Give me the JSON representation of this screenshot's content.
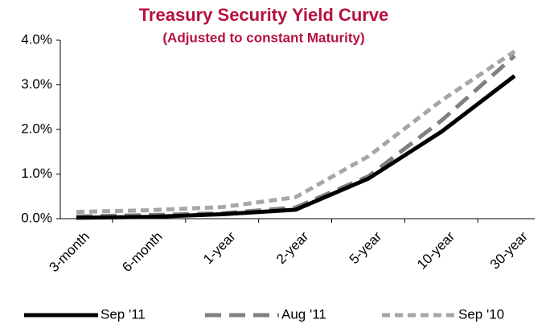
{
  "chart_data": {
    "type": "line",
    "title": "Treasury Security Yield Curve",
    "subtitle": "(Adjusted to constant Maturity)",
    "categories": [
      "3-month",
      "6-month",
      "1-year",
      "2-year",
      "5-year",
      "10-year",
      "30-year"
    ],
    "series": [
      {
        "name": "Sep '11",
        "color": "#000000",
        "dash": "solid",
        "values": [
          0.02,
          0.04,
          0.1,
          0.2,
          0.9,
          1.95,
          3.2
        ]
      },
      {
        "name": "Aug '11",
        "color": "#808080",
        "dash": "long",
        "values": [
          0.05,
          0.08,
          0.12,
          0.25,
          0.95,
          2.2,
          3.65
        ]
      },
      {
        "name": "Sep '10",
        "color": "#a6a6a6",
        "dash": "short",
        "values": [
          0.15,
          0.19,
          0.26,
          0.48,
          1.4,
          2.65,
          3.75
        ]
      }
    ],
    "ylim": [
      0,
      4
    ],
    "yticks": [
      {
        "value": 0,
        "label": "0.0%"
      },
      {
        "value": 1,
        "label": "1.0%"
      },
      {
        "value": 2,
        "label": "2.0%"
      },
      {
        "value": 3,
        "label": "3.0%"
      },
      {
        "value": 4,
        "label": "4.0%"
      }
    ],
    "grid": false,
    "legend": "bottom"
  }
}
